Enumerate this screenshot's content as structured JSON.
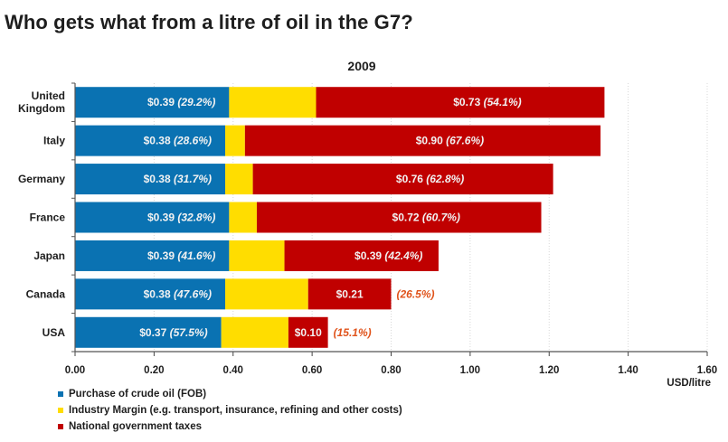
{
  "title": "Who gets what from a litre of oil in the G7?",
  "chart_data": {
    "type": "bar",
    "orientation": "horizontal",
    "stacked": true,
    "title": "2009",
    "xlabel": "USD/litre",
    "ylabel": "",
    "xlim": [
      0,
      1.6
    ],
    "xticks": [
      "0.00",
      "0.20",
      "0.40",
      "0.60",
      "0.80",
      "1.00",
      "1.20",
      "1.40",
      "1.60"
    ],
    "grid": true,
    "legend_position": "bottom-left",
    "categories": [
      "United Kingdom",
      "Italy",
      "Germany",
      "France",
      "Japan",
      "Canada",
      "USA"
    ],
    "category_lines": [
      [
        "United",
        "Kingdom"
      ],
      [
        "Italy"
      ],
      [
        "Germany"
      ],
      [
        "France"
      ],
      [
        "Japan"
      ],
      [
        "Canada"
      ],
      [
        "USA"
      ]
    ],
    "series": [
      {
        "name": "Purchase of crude oil (FOB)",
        "color": "#0a72b2",
        "values": [
          0.39,
          0.38,
          0.38,
          0.39,
          0.39,
          0.38,
          0.37
        ],
        "labels": [
          "$0.39",
          "$0.38",
          "$0.38",
          "$0.39",
          "$0.39",
          "$0.38",
          "$0.37"
        ],
        "pct_labels": [
          "(29.2%)",
          "(28.6%)",
          "(31.7%)",
          "(32.8%)",
          "(41.6%)",
          "(47.6%)",
          "(57.5%)"
        ]
      },
      {
        "name": "Industry Margin (e.g. transport, insurance, refining and other costs)",
        "color": "#ffdd00",
        "values": [
          0.22,
          0.05,
          0.07,
          0.07,
          0.14,
          0.21,
          0.17
        ],
        "labels": [],
        "pct_labels": []
      },
      {
        "name": "National government taxes",
        "color": "#c00000",
        "values": [
          0.73,
          0.9,
          0.76,
          0.72,
          0.39,
          0.21,
          0.1
        ],
        "labels": [
          "$0.73",
          "$0.90",
          "$0.76",
          "$0.72",
          "$0.39",
          "$0.21",
          "$0.10"
        ],
        "pct_labels": [
          "(54.1%)",
          "(67.6%)",
          "(62.8%)",
          "(60.7%)",
          "(42.4%)",
          "(26.5%)",
          "(15.1%)"
        ]
      }
    ],
    "annotation_color_outside": "#e0531b"
  }
}
